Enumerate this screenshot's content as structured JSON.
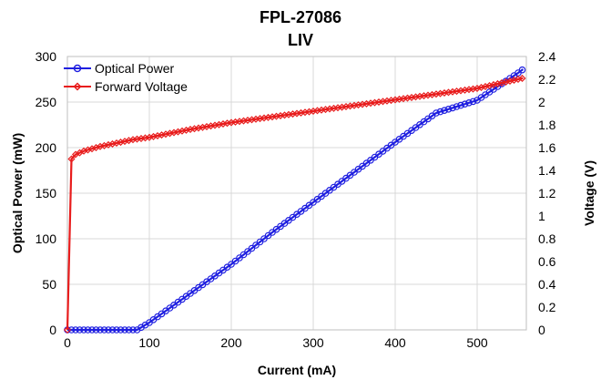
{
  "chart_data": {
    "type": "line",
    "title": "FPL-27086",
    "subtitle": "LIV",
    "xlabel": "Current (mA)",
    "ylabel": "Optical Power (mW)",
    "y2label": "Voltage (V)",
    "xlim": [
      0,
      560
    ],
    "ylim": [
      0,
      300
    ],
    "y2lim": [
      0,
      2.4
    ],
    "xticks": [
      0,
      100,
      200,
      300,
      400,
      500
    ],
    "yticks": [
      0,
      50,
      100,
      150,
      200,
      250,
      300
    ],
    "y2ticks": [
      "0",
      "0.2",
      "0.4",
      "0.6",
      "0.8",
      "1",
      "1.2",
      "1.4",
      "1.6",
      "1.8",
      "2",
      "2.2",
      "2.4"
    ],
    "grid": true,
    "legend_position": "top-left",
    "series": [
      {
        "name": "Optical Power",
        "axis": "left",
        "color": "#1f1fe0",
        "marker": "circle",
        "x": [
          0,
          85,
          100,
          150,
          200,
          250,
          300,
          350,
          400,
          450,
          500,
          550,
          556
        ],
        "values": [
          0,
          0,
          8,
          40,
          72,
          107,
          140,
          173,
          206,
          238,
          252,
          282,
          286
        ]
      },
      {
        "name": "Forward Voltage",
        "axis": "right",
        "color": "#e81c1c",
        "marker": "diamond",
        "x": [
          0,
          5,
          10,
          20,
          40,
          60,
          80,
          100,
          150,
          200,
          250,
          300,
          350,
          400,
          450,
          500,
          556
        ],
        "values": [
          0,
          1.5,
          1.54,
          1.57,
          1.61,
          1.64,
          1.67,
          1.69,
          1.76,
          1.82,
          1.87,
          1.92,
          1.97,
          2.02,
          2.07,
          2.12,
          2.21
        ]
      }
    ]
  }
}
